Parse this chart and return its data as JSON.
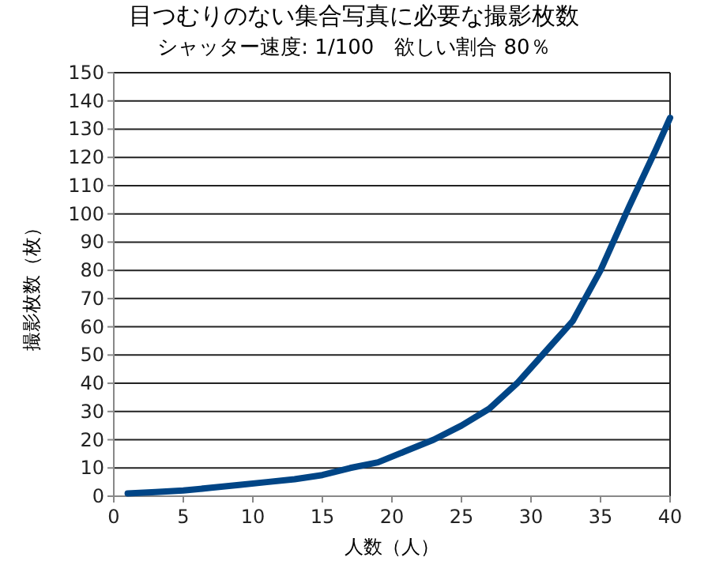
{
  "chart_data": {
    "type": "line",
    "title": "目つむりのない集合写真に必要な撮影枚数",
    "subtitle": "シャッター速度: 1/100　欲しい割合 80％",
    "xlabel": "人数（人）",
    "ylabel": "撮影枚数（枚）",
    "x": [
      1,
      3,
      5,
      7,
      9,
      11,
      13,
      15,
      17,
      19,
      21,
      23,
      25,
      27,
      29,
      31,
      33,
      35,
      37,
      39,
      40
    ],
    "series": [
      {
        "color": "#004586",
        "values": [
          1,
          1.5,
          2,
          3,
          4,
          5,
          6,
          7.5,
          10,
          12,
          16,
          20,
          25,
          31,
          40,
          51,
          62,
          80,
          102,
          123,
          134
        ]
      }
    ],
    "xlim": [
      0,
      40
    ],
    "xticks": [
      0,
      5,
      10,
      15,
      20,
      25,
      30,
      35,
      40
    ],
    "ylim": [
      0,
      150
    ],
    "yticks": [
      0,
      10,
      20,
      30,
      40,
      50,
      60,
      70,
      80,
      90,
      100,
      110,
      120,
      130,
      140,
      150
    ],
    "grid": "y",
    "marker": "none",
    "line_style": "solid"
  }
}
